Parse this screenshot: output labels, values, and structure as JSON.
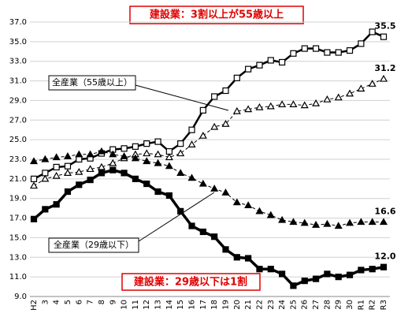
{
  "chart_data": {
    "type": "line",
    "annotations": [
      "建設業：3割以上が55歳以上",
      "建設業：29歳以下は1割",
      "全産業（55歳以上）",
      "全産業（29歳以下）"
    ],
    "categories": [
      "H2",
      "3",
      "4",
      "5",
      "6",
      "7",
      "8",
      "9",
      "10",
      "11",
      "12",
      "13",
      "14",
      "15",
      "16",
      "17",
      "18",
      "19",
      "20",
      "21",
      "22",
      "23",
      "24",
      "25",
      "26",
      "27",
      "28",
      "29",
      "30",
      "R1",
      "R2",
      "R3"
    ],
    "ylim": [
      9,
      37
    ],
    "yticks": [
      {
        "value": 9,
        "label": "9.0"
      },
      {
        "value": 11,
        "label": "11.0"
      },
      {
        "value": 13,
        "label": "13.0"
      },
      {
        "value": 15,
        "label": "15.0"
      },
      {
        "value": 17,
        "label": "17.0"
      },
      {
        "value": 19,
        "label": "19.0"
      },
      {
        "value": 21,
        "label": "21.0"
      },
      {
        "value": 23,
        "label": "23.0"
      },
      {
        "value": 25,
        "label": "25.0"
      },
      {
        "value": 27,
        "label": "27.0"
      },
      {
        "value": 29,
        "label": "29.0"
      },
      {
        "value": 31,
        "label": "31.0"
      },
      {
        "value": 33,
        "label": "33.0"
      },
      {
        "value": 35,
        "label": "35.0"
      },
      {
        "value": 37,
        "label": "37.0"
      }
    ],
    "grid": true,
    "series": [
      {
        "color": "#000000",
        "marker": "square-open",
        "width": 2.5,
        "dash": false,
        "end_label": "35.5",
        "values": [
          21.0,
          21.6,
          22.2,
          22.3,
          23.0,
          23.1,
          23.6,
          24.0,
          24.1,
          24.3,
          24.6,
          24.8,
          23.8,
          24.6,
          26.0,
          28.0,
          29.4,
          30.0,
          31.3,
          32.2,
          32.6,
          33.1,
          32.9,
          33.8,
          34.3,
          34.3,
          33.9,
          33.9,
          34.1,
          34.8,
          36.0,
          35.5
        ]
      },
      {
        "color": "#000000",
        "marker": "triangle-open",
        "width": 1,
        "dash": true,
        "end_label": "31.2",
        "values": [
          20.3,
          21.0,
          21.3,
          21.6,
          21.7,
          22.0,
          22.2,
          22.6,
          23.1,
          23.5,
          23.6,
          23.5,
          23.2,
          23.6,
          24.5,
          25.4,
          26.3,
          26.6,
          27.9,
          28.1,
          28.3,
          28.4,
          28.6,
          28.6,
          28.5,
          28.7,
          29.1,
          29.3,
          29.7,
          30.2,
          30.7,
          31.2
        ]
      },
      {
        "color": "#000000",
        "marker": "triangle",
        "width": 1,
        "dash": true,
        "end_label": "16.6",
        "values": [
          22.8,
          23.0,
          23.2,
          23.3,
          23.5,
          23.5,
          23.8,
          23.5,
          23.3,
          23.1,
          22.8,
          22.6,
          22.3,
          21.6,
          21.1,
          20.5,
          20.0,
          19.6,
          18.6,
          18.3,
          17.7,
          17.3,
          16.8,
          16.6,
          16.5,
          16.3,
          16.4,
          16.2,
          16.5,
          16.6,
          16.6,
          16.6
        ]
      },
      {
        "color": "#000000",
        "marker": "square",
        "width": 3.5,
        "dash": false,
        "end_label": "12.0",
        "values": [
          16.9,
          17.9,
          18.4,
          19.7,
          20.4,
          20.9,
          21.6,
          21.9,
          21.6,
          21.0,
          20.5,
          19.7,
          19.3,
          17.7,
          16.2,
          15.6,
          15.1,
          13.8,
          13.0,
          12.9,
          11.8,
          11.8,
          11.3,
          10.1,
          10.6,
          10.8,
          11.3,
          11.0,
          11.2,
          11.7,
          11.8,
          12.0
        ]
      }
    ]
  }
}
